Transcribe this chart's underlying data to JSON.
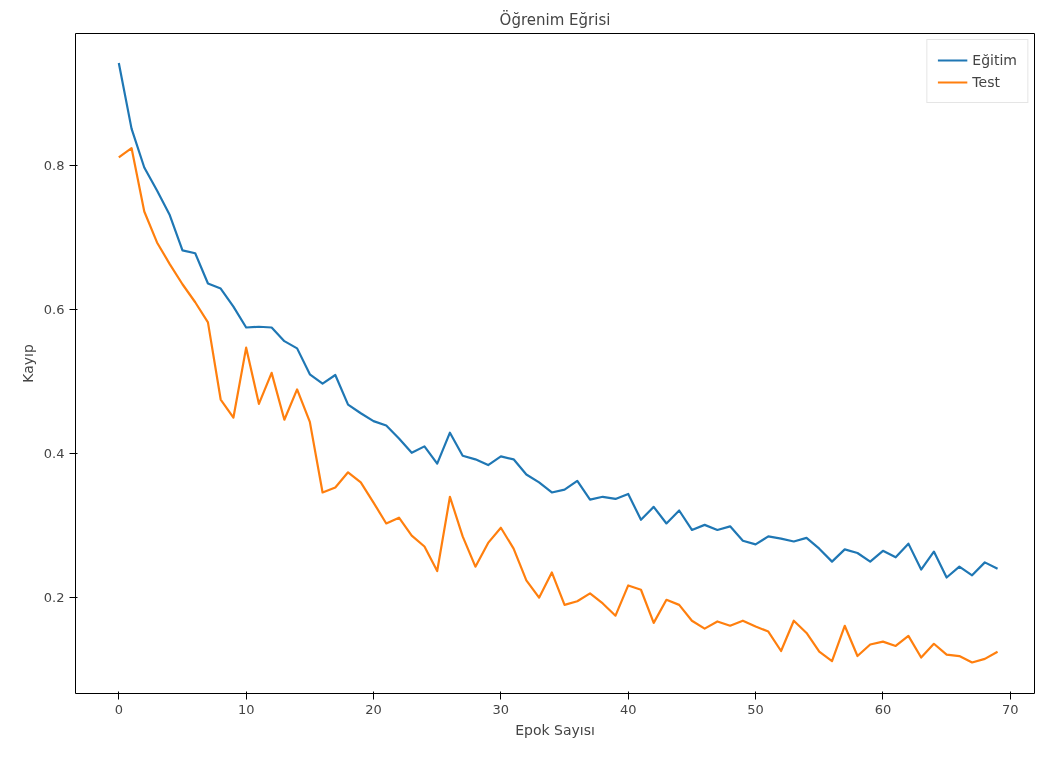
{
  "chart_data": {
    "type": "line",
    "title": "Öğrenim Eğrisi",
    "xlabel": "Epok Sayısı",
    "ylabel": "Kayıp",
    "x": [
      0,
      1,
      2,
      3,
      4,
      5,
      6,
      7,
      8,
      9,
      10,
      11,
      12,
      13,
      14,
      15,
      16,
      17,
      18,
      19,
      20,
      21,
      22,
      23,
      24,
      25,
      26,
      27,
      28,
      29,
      30,
      31,
      32,
      33,
      34,
      35,
      36,
      37,
      38,
      39,
      40,
      41,
      42,
      43,
      44,
      45,
      46,
      47,
      48,
      49,
      50,
      51,
      52,
      53,
      54,
      55,
      56,
      57,
      58,
      59,
      60,
      61,
      62,
      63,
      64,
      65,
      66,
      67,
      68,
      69
    ],
    "series": [
      {
        "name": "Eğitim",
        "color": "#1f77b4",
        "values": [
          0.942,
          0.851,
          0.797,
          0.765,
          0.731,
          0.682,
          0.678,
          0.636,
          0.629,
          0.604,
          0.575,
          0.576,
          0.575,
          0.556,
          0.546,
          0.51,
          0.497,
          0.509,
          0.468,
          0.456,
          0.445,
          0.439,
          0.421,
          0.401,
          0.41,
          0.386,
          0.429,
          0.397,
          0.392,
          0.384,
          0.396,
          0.392,
          0.371,
          0.36,
          0.346,
          0.35,
          0.362,
          0.336,
          0.34,
          0.337,
          0.344,
          0.308,
          0.326,
          0.303,
          0.321,
          0.294,
          0.301,
          0.294,
          0.299,
          0.279,
          0.274,
          0.285,
          0.282,
          0.278,
          0.283,
          0.268,
          0.25,
          0.267,
          0.262,
          0.25,
          0.265,
          0.256,
          0.275,
          0.239,
          0.264,
          0.228,
          0.243,
          0.231,
          0.249,
          0.24
        ]
      },
      {
        "name": "Test",
        "color": "#ff7f0e",
        "values": [
          0.811,
          0.824,
          0.736,
          0.693,
          0.663,
          0.635,
          0.61,
          0.582,
          0.475,
          0.45,
          0.547,
          0.469,
          0.512,
          0.447,
          0.489,
          0.444,
          0.346,
          0.353,
          0.374,
          0.36,
          0.332,
          0.303,
          0.311,
          0.286,
          0.271,
          0.237,
          0.34,
          0.285,
          0.243,
          0.276,
          0.297,
          0.268,
          0.224,
          0.2,
          0.235,
          0.19,
          0.195,
          0.206,
          0.192,
          0.175,
          0.217,
          0.211,
          0.165,
          0.197,
          0.19,
          0.168,
          0.157,
          0.167,
          0.161,
          0.168,
          0.16,
          0.153,
          0.126,
          0.168,
          0.151,
          0.125,
          0.112,
          0.161,
          0.119,
          0.135,
          0.139,
          0.133,
          0.147,
          0.117,
          0.136,
          0.121,
          0.119,
          0.11,
          0.115,
          0.125
        ]
      }
    ],
    "xlim": [
      -3.4,
      71.9
    ],
    "ylim": [
      0.067,
      0.983
    ],
    "xticks": [
      0,
      10,
      20,
      30,
      40,
      50,
      60,
      70
    ],
    "yticks": [
      {
        "value": 0.2,
        "label": "0.2"
      },
      {
        "value": 0.4,
        "label": "0.4"
      },
      {
        "value": 0.6,
        "label": "0.6"
      },
      {
        "value": 0.8,
        "label": "0.8"
      }
    ],
    "legend": "top right",
    "grid": false,
    "marker": "none",
    "line_style": "solid"
  }
}
